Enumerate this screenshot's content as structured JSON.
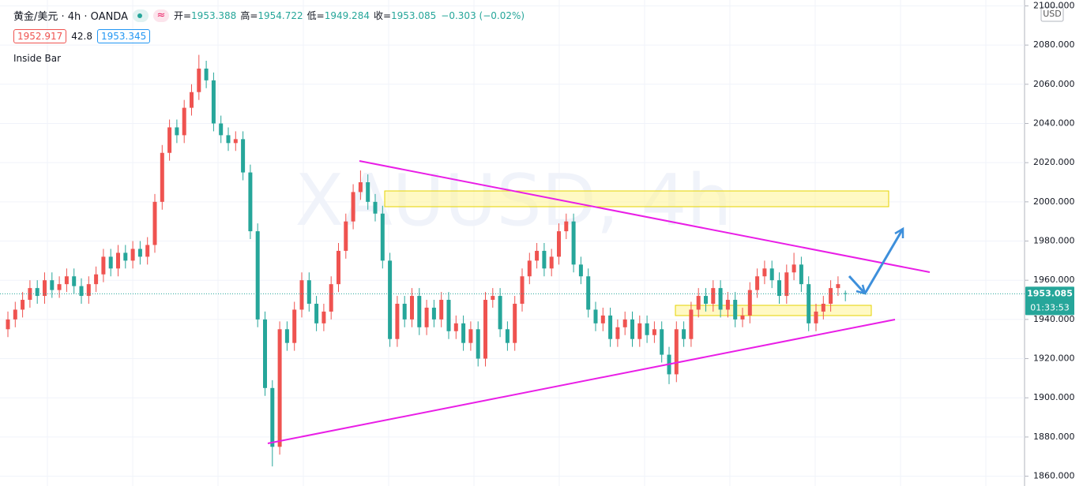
{
  "chart_data": {
    "type": "candlestick",
    "symbol": "黄金/美元 · 4h · OANDA",
    "ohlc_header": [
      {
        "k": "开=",
        "v": "1953.388"
      },
      {
        "k": "高=",
        "v": "1954.722"
      },
      {
        "k": "低=",
        "v": "1949.284"
      },
      {
        "k": "收=",
        "v": "1953.085"
      }
    ],
    "change": "−0.303 (−0.02%)",
    "bid": "1952.917",
    "spread": "42.8",
    "ask": "1953.345",
    "indicator": "Inside Bar",
    "currency": "USD",
    "watermark": "XAUUSD, 4h",
    "last_price": {
      "value": 1953.085,
      "label": "1953.085"
    },
    "countdown": "01:33:53",
    "up_color": "#ef5350",
    "down_color": "#26a69a",
    "grid": true,
    "ylim": [
      1855,
      2103
    ],
    "yticks": [
      {
        "value": 1860,
        "label": "1860.000"
      },
      {
        "value": 1880,
        "label": "1880.000"
      },
      {
        "value": 1900,
        "label": "1900.000"
      },
      {
        "value": 1920,
        "label": "1920.000"
      },
      {
        "value": 1940,
        "label": "1940.000"
      },
      {
        "value": 1960,
        "label": "1960.000"
      },
      {
        "value": 1980,
        "label": "1980.000"
      },
      {
        "value": 2000,
        "label": "2000.000"
      },
      {
        "value": 2020,
        "label": "2020.000"
      },
      {
        "value": 2040,
        "label": "2040.000"
      },
      {
        "value": 2060,
        "label": "2060.000"
      },
      {
        "value": 2080,
        "label": "2080.000"
      },
      {
        "value": 2100,
        "label": "2100.000"
      }
    ],
    "open": [
      1935,
      1940,
      1945,
      1950,
      1956,
      1952,
      1960,
      1955,
      1958,
      1962,
      1957,
      1952,
      1958,
      1963,
      1972,
      1966,
      1974,
      1970,
      1976,
      1972,
      1978,
      2000,
      2025,
      2038,
      2034,
      2048,
      2056,
      2068,
      2062,
      2040,
      2034,
      2030,
      2032,
      2015,
      1985,
      1940,
      1905,
      1875,
      1935,
      1928,
      1945,
      1960,
      1948,
      1938,
      1944,
      1958,
      1975,
      1990,
      2005,
      2010,
      2000,
      1994,
      1970,
      1930,
      1948,
      1940,
      1952,
      1936,
      1946,
      1940,
      1950,
      1934,
      1938,
      1928,
      1935,
      1920,
      1950,
      1952,
      1935,
      1928,
      1948,
      1962,
      1970,
      1975,
      1966,
      1972,
      1985,
      1990,
      1968,
      1962,
      1945,
      1938,
      1942,
      1930,
      1936,
      1940,
      1930,
      1938,
      1932,
      1935,
      1922,
      1912,
      1935,
      1930,
      1945,
      1952,
      1948,
      1956,
      1945,
      1950,
      1940,
      1942,
      1955,
      1962,
      1966,
      1960,
      1952,
      1964,
      1968,
      1958,
      1938,
      1944,
      1948,
      1956,
      1953.388
    ],
    "high": [
      1944,
      1949,
      1954,
      1960,
      1960,
      1964,
      1964,
      1962,
      1966,
      1966,
      1961,
      1962,
      1967,
      1976,
      1976,
      1978,
      1978,
      1980,
      1980,
      1982,
      2004,
      2029,
      2042,
      2042,
      2052,
      2060,
      2075,
      2072,
      2066,
      2044,
      2038,
      2036,
      2036,
      2019,
      1989,
      1944,
      1909,
      1939,
      1939,
      1949,
      1964,
      1964,
      1952,
      1948,
      1962,
      1979,
      1994,
      2009,
      2016,
      2014,
      2004,
      1998,
      1974,
      1952,
      1952,
      1956,
      1956,
      1950,
      1950,
      1954,
      1954,
      1942,
      1942,
      1939,
      1939,
      1954,
      1956,
      1956,
      1939,
      1952,
      1966,
      1974,
      1979,
      1979,
      1976,
      1989,
      1994,
      1994,
      1972,
      1966,
      1949,
      1946,
      1946,
      1940,
      1944,
      1944,
      1942,
      1942,
      1939,
      1939,
      1926,
      1939,
      1939,
      1949,
      1956,
      1956,
      1960,
      1960,
      1954,
      1954,
      1946,
      1959,
      1966,
      1970,
      1970,
      1964,
      1968,
      1974,
      1972,
      1962,
      1948,
      1952,
      1960,
      1962,
      1954.722
    ],
    "low": [
      1931,
      1936,
      1941,
      1946,
      1948,
      1948,
      1951,
      1951,
      1954,
      1953,
      1948,
      1948,
      1954,
      1959,
      1962,
      1962,
      1966,
      1966,
      1968,
      1968,
      1974,
      1996,
      2021,
      2030,
      2030,
      2044,
      2052,
      2058,
      2036,
      2030,
      2026,
      2026,
      2011,
      1981,
      1936,
      1901,
      1865,
      1871,
      1924,
      1924,
      1941,
      1944,
      1934,
      1934,
      1940,
      1954,
      1971,
      1986,
      2001,
      1996,
      1990,
      1966,
      1926,
      1926,
      1936,
      1936,
      1932,
      1932,
      1936,
      1936,
      1930,
      1930,
      1924,
      1924,
      1916,
      1916,
      1946,
      1931,
      1924,
      1924,
      1944,
      1958,
      1966,
      1962,
      1962,
      1968,
      1981,
      1964,
      1958,
      1941,
      1934,
      1934,
      1926,
      1926,
      1932,
      1926,
      1926,
      1928,
      1928,
      1918,
      1907,
      1908,
      1926,
      1926,
      1941,
      1944,
      1944,
      1941,
      1941,
      1936,
      1936,
      1938,
      1951,
      1958,
      1956,
      1948,
      1948,
      1960,
      1954,
      1934,
      1934,
      1940,
      1944,
      1952,
      1949.284
    ],
    "close": [
      1940,
      1945,
      1950,
      1956,
      1952,
      1960,
      1955,
      1958,
      1962,
      1957,
      1952,
      1958,
      1963,
      1972,
      1966,
      1974,
      1970,
      1976,
      1972,
      1978,
      2000,
      2025,
      2038,
      2034,
      2048,
      2056,
      2068,
      2062,
      2040,
      2034,
      2030,
      2032,
      2015,
      1985,
      1940,
      1905,
      1875,
      1935,
      1928,
      1945,
      1960,
      1948,
      1938,
      1944,
      1958,
      1975,
      1990,
      2005,
      2010,
      2000,
      1994,
      1970,
      1930,
      1948,
      1940,
      1952,
      1936,
      1946,
      1940,
      1950,
      1934,
      1938,
      1928,
      1935,
      1920,
      1950,
      1952,
      1935,
      1928,
      1948,
      1962,
      1970,
      1975,
      1966,
      1972,
      1985,
      1990,
      1968,
      1962,
      1945,
      1938,
      1942,
      1930,
      1936,
      1940,
      1930,
      1938,
      1932,
      1935,
      1922,
      1912,
      1935,
      1930,
      1945,
      1952,
      1948,
      1956,
      1945,
      1950,
      1940,
      1942,
      1955,
      1962,
      1966,
      1960,
      1952,
      1964,
      1968,
      1958,
      1938,
      1944,
      1948,
      1956,
      1958,
      1953.085
    ]
  }
}
